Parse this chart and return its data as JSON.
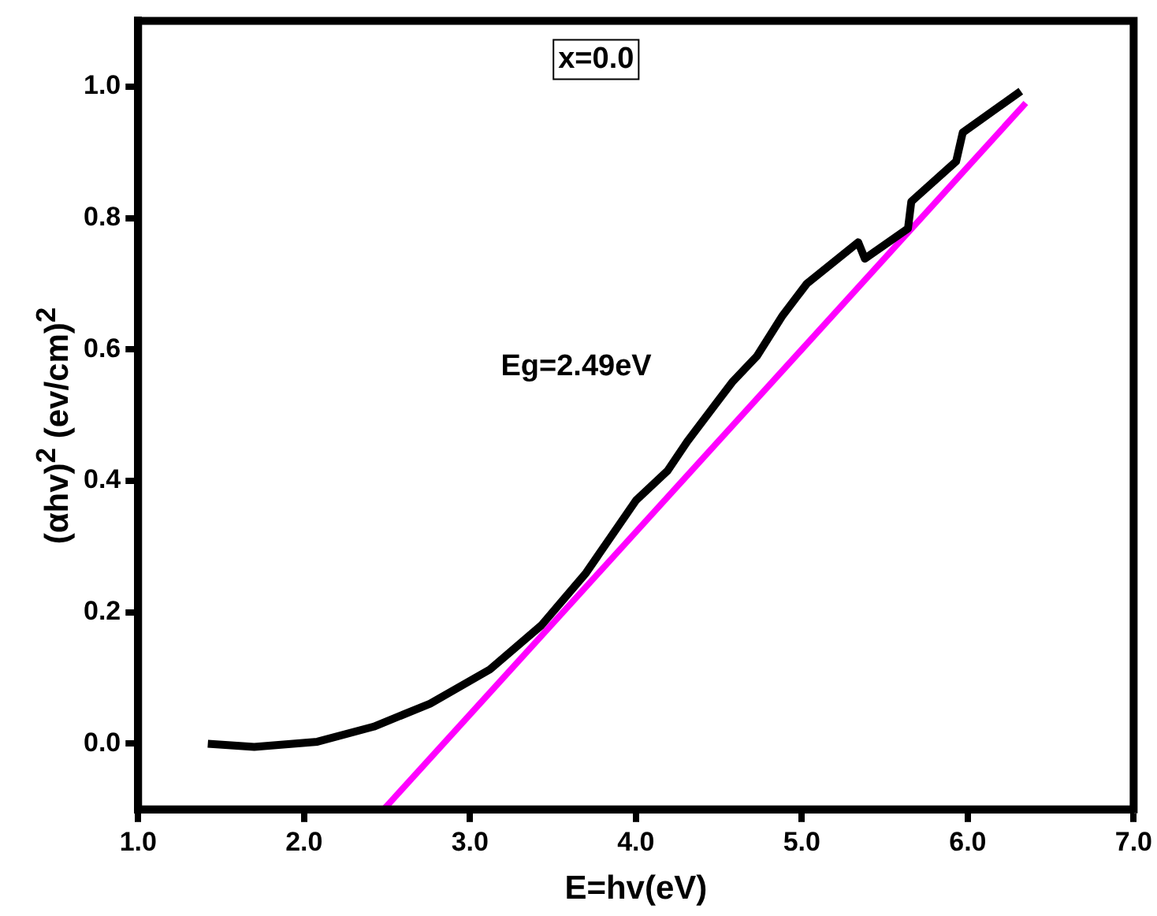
{
  "chart_data": {
    "type": "line",
    "xlabel": "E=hv(eV)",
    "ylabel": "(αhv)$^{2}$ (ev/cm)$^{2}$",
    "xlim": [
      1,
      7
    ],
    "xticks": [
      {
        "value": 1,
        "label": "1.0"
      },
      {
        "value": 2,
        "label": "2.0"
      },
      {
        "value": 3,
        "label": "3.0"
      },
      {
        "value": 4,
        "label": "4.0"
      },
      {
        "value": 5,
        "label": "5.0"
      },
      {
        "value": 6,
        "label": "6.0"
      },
      {
        "value": 7,
        "label": "7.0"
      }
    ],
    "ylim": [
      -0.1,
      1.1
    ],
    "yticks": [
      {
        "value": 0,
        "label": "0.0"
      },
      {
        "value": 0.2,
        "label": "0.2"
      },
      {
        "value": 0.4,
        "label": "0.4"
      },
      {
        "value": 0.6,
        "label": "0.6"
      },
      {
        "value": 0.8,
        "label": "0.8"
      },
      {
        "value": 1,
        "label": "1.0"
      }
    ],
    "grid": false,
    "legend": false,
    "marker": "none",
    "line_style": "solid",
    "annotations": [
      "x=0.0",
      "Eg=2.49eV"
    ],
    "series": [
      {
        "color": "#000000",
        "x": [
          1.42,
          1.7,
          2.08,
          2.42,
          2.76,
          3.12,
          3.43,
          3.7,
          4.0,
          4.19,
          4.31,
          4.46,
          4.58,
          4.73,
          4.88,
          5.03,
          5.34,
          5.38,
          5.64,
          5.66,
          5.93,
          5.97,
          6.32
        ],
        "values": [
          0.0,
          -0.005,
          0.003,
          0.026,
          0.061,
          0.113,
          0.18,
          0.26,
          0.37,
          0.415,
          0.46,
          0.51,
          0.55,
          0.59,
          0.65,
          0.7,
          0.763,
          0.738,
          0.784,
          0.825,
          0.886,
          0.93,
          0.993
        ]
      },
      {
        "color": "#ff00ff",
        "x": [
          2.48,
          6.35
        ],
        "values": [
          -0.1,
          0.975
        ]
      }
    ]
  }
}
